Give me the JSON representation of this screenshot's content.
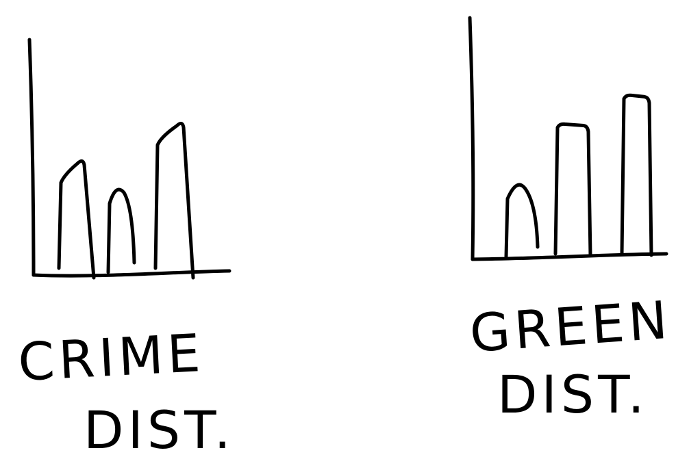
{
  "chart_data": [
    {
      "type": "bar",
      "label_lines": [
        "CRIME",
        "DIST."
      ],
      "values": [
        3,
        2.3,
        4
      ],
      "ylim": [
        0,
        6
      ],
      "grid": false,
      "legend": "none",
      "style": "hand-drawn"
    },
    {
      "type": "bar",
      "label_lines": [
        "GREEN",
        "DIST."
      ],
      "values": [
        2.1,
        3.7,
        4.5
      ],
      "ylim": [
        0,
        6.6
      ],
      "grid": false,
      "legend": "none",
      "style": "hand-drawn"
    }
  ],
  "colors": {
    "ink": "#000000",
    "background": "#ffffff"
  }
}
